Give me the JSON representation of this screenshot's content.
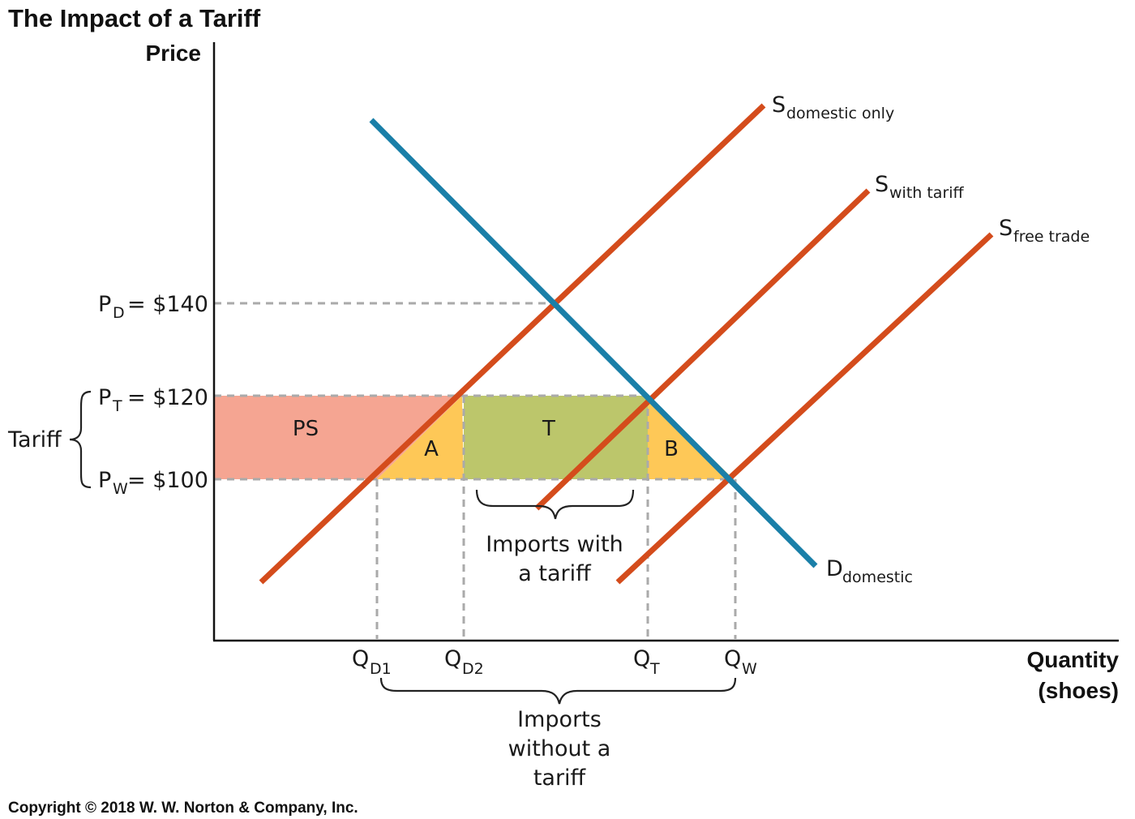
{
  "title": "The Impact of a Tariff",
  "axes": {
    "y_title": "Price",
    "x_title_line1": "Quantity",
    "x_title_line2": "(shoes)"
  },
  "price_labels": {
    "pd": {
      "main": "P",
      "sub": "D",
      "rest": "= $140"
    },
    "pt": {
      "main": "P",
      "sub": "T",
      "rest": "= $120"
    },
    "pw": {
      "main": "P",
      "sub": "W",
      "rest": "= $100"
    },
    "tariff": "Tariff"
  },
  "quantity_labels": {
    "qd1": {
      "main": "Q",
      "sub": "D1"
    },
    "qd2": {
      "main": "Q",
      "sub": "D2"
    },
    "qt": {
      "main": "Q",
      "sub": "T"
    },
    "qw": {
      "main": "Q",
      "sub": "W"
    }
  },
  "curves": {
    "s_domestic": {
      "main": "S",
      "sub": "domestic only"
    },
    "s_tariff": {
      "main": "S",
      "sub": "with tariff"
    },
    "s_free": {
      "main": "S",
      "sub": "free trade"
    },
    "d_domestic": {
      "main": "D",
      "sub": "domestic"
    }
  },
  "regions": {
    "ps": "PS",
    "a": "A",
    "t": "T",
    "b": "B"
  },
  "notes": {
    "imports_with_1": "Imports with",
    "imports_with_2": "a tariff",
    "imports_without_1": "Imports",
    "imports_without_2": "without a",
    "imports_without_3": "tariff"
  },
  "copyright": "Copyright © 2018 W. W. Norton & Company, Inc.",
  "colors": {
    "supply": "#d44c1c",
    "demand": "#1a7fa8",
    "producer_surplus": "#f5a592",
    "deadweight": "#fec857",
    "tariff_revenue": "#bcc66b"
  }
}
